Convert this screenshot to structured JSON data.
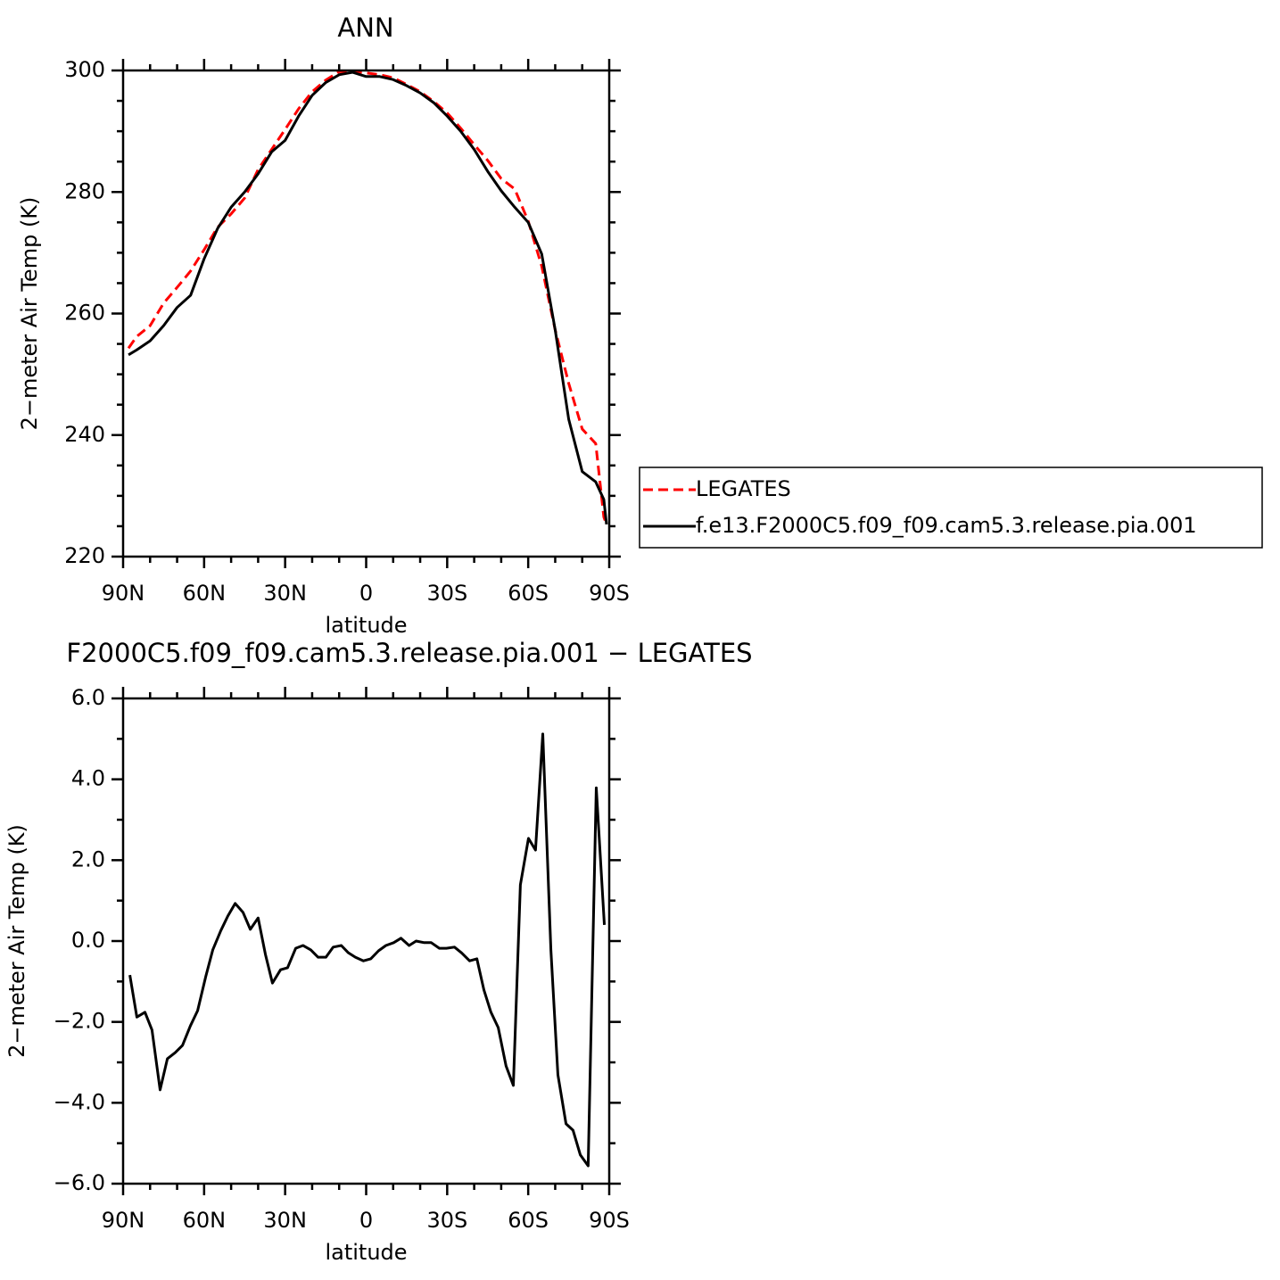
{
  "chart_data": [
    {
      "type": "line",
      "title": "ANN",
      "xlabel": "latitude",
      "ylabel": "2−meter Air Temp (K)",
      "xlim": [
        90,
        -90
      ],
      "ylim": [
        220,
        300
      ],
      "xticks": [
        {
          "value": 90,
          "label": "90N"
        },
        {
          "value": 60,
          "label": "60N"
        },
        {
          "value": 30,
          "label": "30N"
        },
        0,
        {
          "value": -30,
          "label": "30S"
        },
        {
          "value": -60,
          "label": "60S"
        },
        {
          "value": -90,
          "label": "90S"
        }
      ],
      "xminorticks": [
        80,
        70,
        50,
        40,
        20,
        10,
        -10,
        -20,
        -40,
        -50,
        -70,
        -80
      ],
      "yticks": [
        220,
        240,
        260,
        280,
        300
      ],
      "yminorticks": [
        225,
        230,
        235,
        245,
        250,
        255,
        265,
        270,
        275,
        285,
        290,
        295
      ],
      "legend": "right",
      "x": [
        88,
        85,
        80,
        75,
        70,
        65,
        60,
        55,
        50,
        45,
        40,
        35,
        30,
        25,
        20,
        15,
        10,
        5,
        0,
        -5,
        -10,
        -15,
        -20,
        -25,
        -30,
        -35,
        -40,
        -45,
        -50,
        -55,
        -60,
        -65,
        -70,
        -75,
        -80,
        -85,
        -88,
        -89
      ],
      "series": [
        {
          "name": "LEGATES",
          "color": "#ff0000",
          "dash": true,
          "values": [
            254.3,
            256.2,
            258,
            261.7,
            264.3,
            267,
            270.5,
            274.2,
            276.4,
            279,
            283.7,
            287,
            290.3,
            293.7,
            296.5,
            298.4,
            299.8,
            299.8,
            299.6,
            299.3,
            298.8,
            297.7,
            296.5,
            294.9,
            293,
            290.5,
            287.8,
            285.2,
            282.2,
            280.5,
            275.2,
            267.8,
            257.3,
            248.5,
            241,
            238.6,
            226.5,
            225.3
          ]
        },
        {
          "name": "f.e13.F2000C5.f09_f09.cam5.3.release.pia.001",
          "color": "#000000",
          "dash": false,
          "values": [
            253.2,
            254,
            255.5,
            258,
            261,
            263,
            269,
            274,
            277.5,
            280,
            283,
            286.6,
            288.5,
            292.5,
            295.9,
            298,
            299.3,
            299.7,
            299,
            299,
            298.5,
            297.5,
            296.3,
            294.7,
            292.5,
            290,
            287,
            283.4,
            280.2,
            277.5,
            275,
            269.8,
            257.3,
            242.6,
            234,
            232.3,
            229.4,
            225.3
          ]
        }
      ]
    },
    {
      "type": "line",
      "title": "F2000C5.f09_f09.cam5.3.release.pia.001 − LEGATES",
      "xlabel": "latitude",
      "ylabel": "2−meter Air Temp (K)",
      "xlim": [
        90,
        -90
      ],
      "ylim": [
        -6,
        6
      ],
      "xticks": [
        {
          "value": 90,
          "label": "90N"
        },
        {
          "value": 60,
          "label": "60N"
        },
        {
          "value": 30,
          "label": "30N"
        },
        0,
        {
          "value": -30,
          "label": "30S"
        },
        {
          "value": -60,
          "label": "60S"
        },
        {
          "value": -90,
          "label": "90S"
        }
      ],
      "xminorticks": [
        80,
        70,
        50,
        40,
        20,
        10,
        -10,
        -20,
        -40,
        -50,
        -70,
        -80
      ],
      "yticks": [
        {
          "value": -6,
          "label": "−6.0"
        },
        {
          "value": -4,
          "label": "−4.0"
        },
        {
          "value": -2,
          "label": "−2.0"
        },
        {
          "value": 0,
          "label": "0.0"
        },
        {
          "value": 2,
          "label": "2.0"
        },
        {
          "value": 4,
          "label": "4.0"
        },
        {
          "value": 6,
          "label": "6.0"
        }
      ],
      "yminorticks": [
        -5,
        -3,
        -1,
        1,
        3,
        5
      ],
      "x": [
        87.5,
        84.9,
        81.9,
        79.3,
        76.3,
        73.6,
        70.7,
        68,
        65.1,
        62.4,
        59.4,
        56.8,
        53.8,
        51.2,
        48.5,
        45.6,
        42.9,
        40,
        37.3,
        34.7,
        31.7,
        29.1,
        26.1,
        23.4,
        20.5,
        17.8,
        14.9,
        12.2,
        9.2,
        6.6,
        4,
        1,
        -1.7,
        -4.6,
        -7.3,
        -10.2,
        -12.9,
        -15.9,
        -18.5,
        -21.5,
        -24.1,
        -27.1,
        -29.7,
        -32.7,
        -35.3,
        -38.3,
        -41,
        -43.6,
        -46.2,
        -48.9,
        -51.8,
        -54.5,
        -57.1,
        -60.1,
        -62.7,
        -65.4,
        -68.4,
        -71,
        -74,
        -76.6,
        -79.3,
        -82.2,
        -85.2,
        -88.2
      ],
      "series": [
        {
          "color": "#000000",
          "values": [
            -0.84,
            -1.88,
            -1.76,
            -2.2,
            -3.68,
            -2.91,
            -2.76,
            -2.58,
            -2.1,
            -1.72,
            -0.88,
            -0.22,
            0.26,
            0.62,
            0.93,
            0.71,
            0.29,
            0.57,
            -0.33,
            -1.04,
            -0.71,
            -0.66,
            -0.18,
            -0.11,
            -0.22,
            -0.4,
            -0.4,
            -0.15,
            -0.11,
            -0.29,
            -0.4,
            -0.49,
            -0.44,
            -0.24,
            -0.11,
            -0.04,
            0.07,
            -0.11,
            0,
            -0.04,
            -0.04,
            -0.18,
            -0.18,
            -0.15,
            -0.29,
            -0.49,
            -0.44,
            -1.21,
            -1.76,
            -2.14,
            -3.09,
            -3.57,
            1.39,
            2.54,
            2.25,
            5.12,
            -0.22,
            -3.31,
            -4.52,
            -4.68,
            -5.29,
            -5.56,
            3.79,
            0.4
          ]
        }
      ]
    }
  ]
}
